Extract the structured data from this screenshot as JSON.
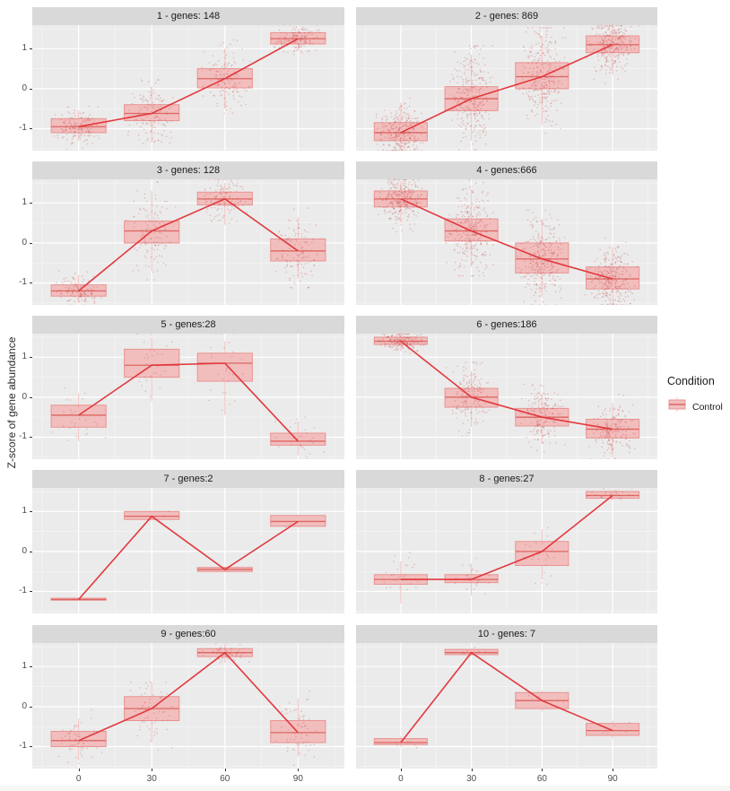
{
  "figure": {
    "ylabel": "Z-score of gene abundance",
    "legend": {
      "title": "Condition",
      "items": [
        {
          "label": "Control"
        }
      ]
    },
    "x_ticks": [
      "0",
      "30",
      "60",
      "90"
    ],
    "y_ticks": [
      "1",
      "0",
      "-1"
    ],
    "colors": {
      "panel_bg": "#ebebeb",
      "strip_bg": "#d9d9d9",
      "grid_major": "#ffffff",
      "grid_minor": "rgba(255,255,255,0.6)",
      "box_fill": "#f1bebd",
      "box_border": "#e89391",
      "median": "#dd6663",
      "whisker": "rgba(232,147,145,0.55)",
      "jitter": "rgba(200,70,70,0.30)",
      "trend_line": "#e2383d"
    }
  },
  "chart_data": {
    "type": "facet-boxplot-line",
    "title": "",
    "xlabel": "",
    "ylabel": "Z-score of gene abundance",
    "x": [
      0,
      30,
      60,
      90
    ],
    "xlim": [
      -19,
      109
    ],
    "ylim": [
      -1.55,
      1.59
    ],
    "y_major": [
      1,
      0,
      -1
    ],
    "y_minor": [
      1.5,
      0.5,
      -0.5,
      -1.5
    ],
    "x_minor": [
      -15,
      15,
      45,
      75,
      105
    ],
    "box_width_units": 22.5,
    "legend_position": "right",
    "facets": [
      {
        "label": "1 - genes: 148",
        "genes": 148,
        "boxes": [
          {
            "t": 0,
            "med": -0.95,
            "q1": -1.1,
            "q3": -0.75,
            "lo": -1.3,
            "hi": -0.55
          },
          {
            "t": 30,
            "med": -0.62,
            "q1": -0.8,
            "q3": -0.4,
            "lo": -1.35,
            "hi": 0.0
          },
          {
            "t": 60,
            "med": 0.25,
            "q1": 0.02,
            "q3": 0.5,
            "lo": -0.5,
            "hi": 1.0
          },
          {
            "t": 90,
            "med": 1.25,
            "q1": 1.12,
            "q3": 1.4,
            "lo": 0.95,
            "hi": 1.5
          }
        ]
      },
      {
        "label": "2 - genes: 869",
        "genes": 869,
        "boxes": [
          {
            "t": 0,
            "med": -1.1,
            "q1": -1.3,
            "q3": -0.85,
            "lo": -1.55,
            "hi": -0.35
          },
          {
            "t": 30,
            "med": -0.25,
            "q1": -0.55,
            "q3": 0.05,
            "lo": -1.3,
            "hi": 0.85
          },
          {
            "t": 60,
            "med": 0.3,
            "q1": 0.0,
            "q3": 0.65,
            "lo": -0.9,
            "hi": 1.3
          },
          {
            "t": 90,
            "med": 1.1,
            "q1": 0.9,
            "q3": 1.32,
            "lo": 0.35,
            "hi": 1.55
          }
        ]
      },
      {
        "label": "3 - genes: 128",
        "genes": 128,
        "boxes": [
          {
            "t": 0,
            "med": -1.2,
            "q1": -1.33,
            "q3": -1.05,
            "lo": -1.5,
            "hi": -0.8
          },
          {
            "t": 30,
            "med": 0.3,
            "q1": 0.0,
            "q3": 0.55,
            "lo": -0.7,
            "hi": 1.3
          },
          {
            "t": 60,
            "med": 1.1,
            "q1": 0.95,
            "q3": 1.27,
            "lo": 0.45,
            "hi": 1.5
          },
          {
            "t": 90,
            "med": -0.2,
            "q1": -0.45,
            "q3": 0.1,
            "lo": -0.9,
            "hi": 0.65
          }
        ]
      },
      {
        "label": "4 - genes:666",
        "genes": 666,
        "boxes": [
          {
            "t": 0,
            "med": 1.1,
            "q1": 0.9,
            "q3": 1.3,
            "lo": 0.5,
            "hi": 1.55
          },
          {
            "t": 30,
            "med": 0.3,
            "q1": 0.05,
            "q3": 0.6,
            "lo": -0.6,
            "hi": 1.35
          },
          {
            "t": 60,
            "med": -0.4,
            "q1": -0.75,
            "q3": 0.0,
            "lo": -1.35,
            "hi": 0.6
          },
          {
            "t": 90,
            "med": -0.9,
            "q1": -1.15,
            "q3": -0.6,
            "lo": -1.55,
            "hi": -0.1
          }
        ]
      },
      {
        "label": "5 - genes:28",
        "genes": 28,
        "boxes": [
          {
            "t": 0,
            "med": -0.45,
            "q1": -0.75,
            "q3": -0.2,
            "lo": -1.1,
            "hi": 0.1
          },
          {
            "t": 30,
            "med": 0.8,
            "q1": 0.5,
            "q3": 1.2,
            "lo": -0.1,
            "hi": 1.5
          },
          {
            "t": 60,
            "med": 0.85,
            "q1": 0.4,
            "q3": 1.1,
            "lo": -0.45,
            "hi": 1.4
          },
          {
            "t": 90,
            "med": -1.1,
            "q1": -1.2,
            "q3": -0.9,
            "lo": -1.45,
            "hi": -0.6
          }
        ]
      },
      {
        "label": "6 - genes:186",
        "genes": 186,
        "boxes": [
          {
            "t": 0,
            "med": 1.4,
            "q1": 1.32,
            "q3": 1.5,
            "lo": 1.15,
            "hi": 1.58
          },
          {
            "t": 30,
            "med": 0.0,
            "q1": -0.25,
            "q3": 0.22,
            "lo": -0.75,
            "hi": 0.65
          },
          {
            "t": 60,
            "med": -0.5,
            "q1": -0.72,
            "q3": -0.28,
            "lo": -1.15,
            "hi": 0.1
          },
          {
            "t": 90,
            "med": -0.8,
            "q1": -1.02,
            "q3": -0.55,
            "lo": -1.45,
            "hi": -0.15
          }
        ]
      },
      {
        "label": "7 - genes:2",
        "genes": 2,
        "boxes": [
          {
            "t": 0,
            "med": -1.2,
            "q1": -1.22,
            "q3": -1.17,
            "lo": -1.23,
            "hi": -1.16
          },
          {
            "t": 30,
            "med": 0.88,
            "q1": 0.8,
            "q3": 1.0,
            "lo": 0.78,
            "hi": 1.02
          },
          {
            "t": 60,
            "med": -0.45,
            "q1": -0.5,
            "q3": -0.4,
            "lo": -0.52,
            "hi": -0.38
          },
          {
            "t": 90,
            "med": 0.75,
            "q1": 0.63,
            "q3": 0.9,
            "lo": 0.6,
            "hi": 0.92
          }
        ]
      },
      {
        "label": "8 - genes:27",
        "genes": 27,
        "boxes": [
          {
            "t": 0,
            "med": -0.7,
            "q1": -0.82,
            "q3": -0.58,
            "lo": -1.3,
            "hi": -0.25
          },
          {
            "t": 30,
            "med": -0.7,
            "q1": -0.78,
            "q3": -0.58,
            "lo": -1.1,
            "hi": -0.3
          },
          {
            "t": 60,
            "med": 0.0,
            "q1": -0.35,
            "q3": 0.25,
            "lo": -0.7,
            "hi": 0.55
          },
          {
            "t": 90,
            "med": 1.4,
            "q1": 1.33,
            "q3": 1.5,
            "lo": 1.28,
            "hi": 1.55
          }
        ]
      },
      {
        "label": "9 - genes:60",
        "genes": 60,
        "boxes": [
          {
            "t": 0,
            "med": -0.85,
            "q1": -1.0,
            "q3": -0.62,
            "lo": -1.35,
            "hi": -0.3
          },
          {
            "t": 30,
            "med": -0.05,
            "q1": -0.35,
            "q3": 0.25,
            "lo": -0.9,
            "hi": 0.6
          },
          {
            "t": 60,
            "med": 1.35,
            "q1": 1.25,
            "q3": 1.45,
            "lo": 1.1,
            "hi": 1.55
          },
          {
            "t": 90,
            "med": -0.65,
            "q1": -0.9,
            "q3": -0.35,
            "lo": -1.25,
            "hi": 0.2
          }
        ]
      },
      {
        "label": "10 - genes: 7",
        "genes": 7,
        "boxes": [
          {
            "t": 0,
            "med": -0.9,
            "q1": -0.95,
            "q3": -0.8,
            "lo": -1.0,
            "hi": -0.75
          },
          {
            "t": 30,
            "med": 1.35,
            "q1": 1.3,
            "q3": 1.43,
            "lo": 1.27,
            "hi": 1.45
          },
          {
            "t": 60,
            "med": 0.15,
            "q1": -0.05,
            "q3": 0.35,
            "lo": -0.12,
            "hi": 0.4
          },
          {
            "t": 90,
            "med": -0.6,
            "q1": -0.72,
            "q3": -0.42,
            "lo": -0.8,
            "hi": -0.35
          }
        ]
      }
    ]
  }
}
